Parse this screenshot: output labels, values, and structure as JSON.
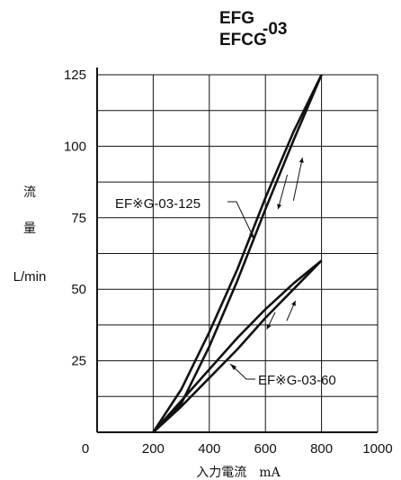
{
  "chart_data": {
    "type": "line",
    "title_top": "EFG",
    "title_bottom": "EFCG",
    "title_suffix": "-03",
    "ylabel_char1": "流",
    "ylabel_char2": "量",
    "yunit": "L/min",
    "xlabel": "入力電流　mA",
    "xlim": [
      0,
      1000
    ],
    "ylim": [
      0,
      125
    ],
    "x_ticks": [
      0,
      200,
      400,
      600,
      800,
      1000
    ],
    "y_ticks": [
      25,
      50,
      75,
      100,
      125
    ],
    "grid": true,
    "series": [
      {
        "name": "EF※G-03-125",
        "increasing": {
          "x": [
            200,
            300,
            400,
            500,
            600,
            700,
            800
          ],
          "y": [
            0,
            15,
            35,
            57,
            82,
            105,
            125
          ]
        },
        "decreasing": {
          "x": [
            200,
            300,
            400,
            500,
            600,
            700,
            800
          ],
          "y": [
            0,
            10,
            30,
            53,
            78,
            102,
            125
          ]
        }
      },
      {
        "name": "EF※G-03-60",
        "increasing": {
          "x": [
            200,
            300,
            400,
            500,
            600,
            700,
            800
          ],
          "y": [
            0,
            11,
            22,
            33,
            43,
            52,
            60
          ]
        },
        "decreasing": {
          "x": [
            200,
            300,
            400,
            500,
            600,
            700,
            800
          ],
          "y": [
            0,
            9,
            19,
            29,
            40,
            50,
            60
          ]
        }
      }
    ]
  }
}
